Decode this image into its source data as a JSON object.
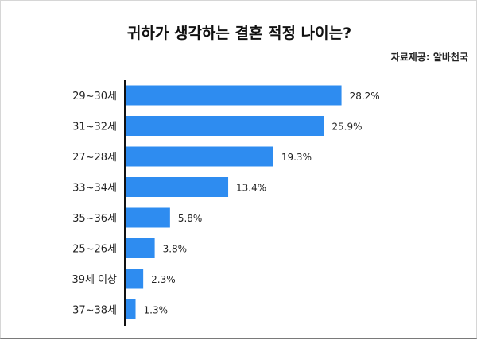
{
  "header": {
    "title": "귀하가 생각하는 결혼 적정 나이는?",
    "source": "자료제공: 알바천국"
  },
  "colors": {
    "bar": "#2e8cf0",
    "axis": "#111111"
  },
  "chart_data": {
    "type": "bar",
    "orientation": "horizontal",
    "title": "귀하가 생각하는 결혼 적정 나이는?",
    "categories": [
      "29~30세",
      "31~32세",
      "27~28세",
      "33~34세",
      "35~36세",
      "25~26세",
      "39세 이상",
      "37~38세"
    ],
    "values": [
      28.2,
      25.9,
      19.3,
      13.4,
      5.8,
      3.8,
      2.3,
      1.3
    ],
    "value_labels": [
      "28.2%",
      "25.9%",
      "19.3%",
      "13.4%",
      "5.8%",
      "3.8%",
      "2.3%",
      "1.3%"
    ],
    "xlim": [
      0,
      30
    ],
    "grid": false,
    "legend": "none"
  }
}
